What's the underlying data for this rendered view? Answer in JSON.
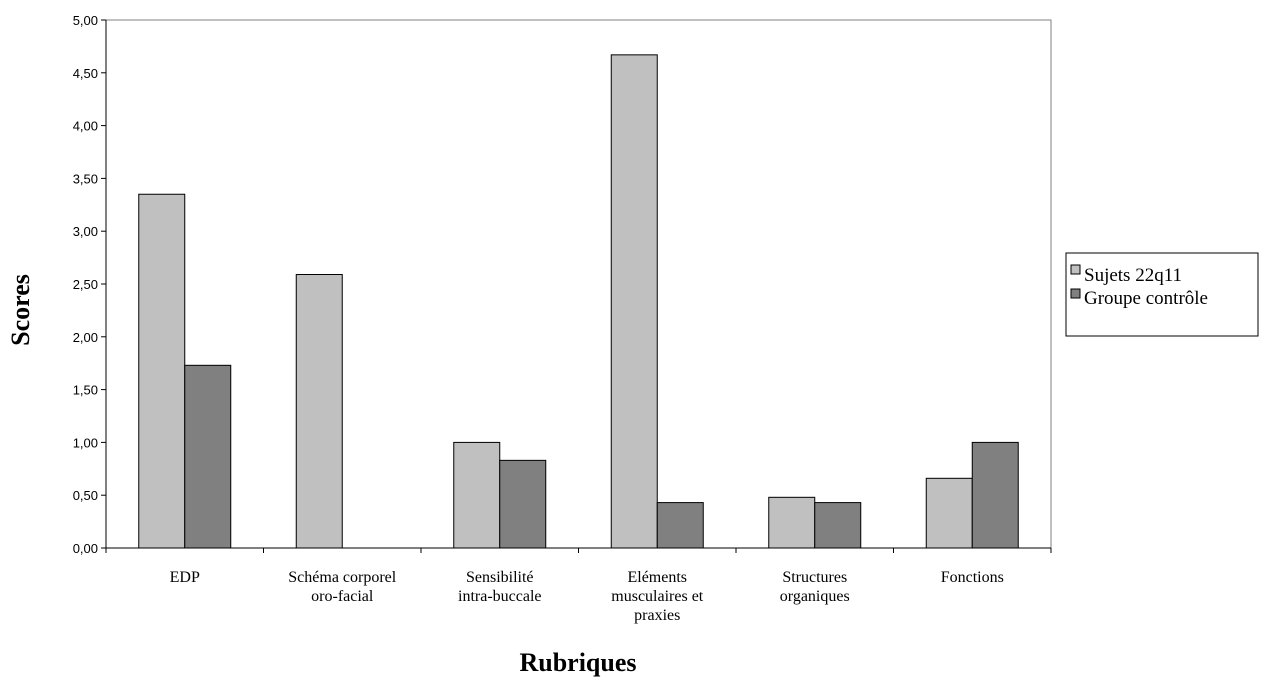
{
  "chart_data": {
    "type": "bar",
    "title": "",
    "xlabel": "Rubriques",
    "ylabel": "Scores",
    "ylim": [
      0,
      5
    ],
    "yticks": [
      "0,00",
      "0,50",
      "1,00",
      "1,50",
      "2,00",
      "2,50",
      "3,00",
      "3,50",
      "4,00",
      "4,50",
      "5,00"
    ],
    "categories": [
      [
        "EDP"
      ],
      [
        "Schéma corporel",
        "oro-facial"
      ],
      [
        "Sensibilité",
        "intra-buccale"
      ],
      [
        "Eléments",
        "musculaires et",
        "praxies"
      ],
      [
        "Structures",
        "organiques"
      ],
      [
        "Fonctions"
      ]
    ],
    "series": [
      {
        "name": "Sujets 22q11",
        "color": "#c0c0c0",
        "values": [
          3.35,
          2.59,
          1.0,
          4.67,
          0.48,
          0.66
        ]
      },
      {
        "name": "Groupe contrôle",
        "color": "#808080",
        "values": [
          1.73,
          0,
          0.83,
          0.43,
          0.43,
          1.0
        ]
      }
    ],
    "grid": false,
    "legend_position": "right"
  }
}
